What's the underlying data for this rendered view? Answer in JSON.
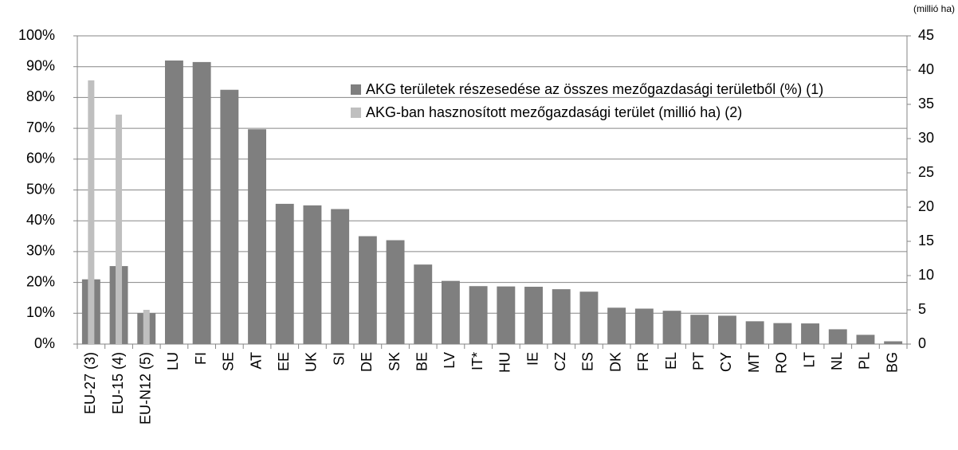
{
  "chart_data": {
    "type": "bar",
    "categories": [
      "EU-27 (3)",
      "EU-15 (4)",
      "EU-N12 (5)",
      "LU",
      "FI",
      "SE",
      "AT",
      "EE",
      "UK",
      "SI",
      "DE",
      "SK",
      "BE",
      "LV",
      "IT*",
      "HU",
      "IE",
      "CZ",
      "ES",
      "DK",
      "FR",
      "EL",
      "PT",
      "CY",
      "MT",
      "RO",
      "LT",
      "NL",
      "PL",
      "BG"
    ],
    "series": [
      {
        "name": "AKG területek részesedése az összes mezőgazdasági területből (%) (1)",
        "color": "#7f7f7f",
        "values": [
          21,
          25.3,
          10,
          92,
          91.5,
          82.5,
          69.7,
          45.5,
          45,
          43.8,
          35,
          33.7,
          25.8,
          20.5,
          18.8,
          18.7,
          18.6,
          17.8,
          17,
          11.8,
          11.5,
          10.8,
          9.5,
          9.2,
          7.4,
          6.8,
          6.7,
          4.8,
          3,
          0.9
        ]
      },
      {
        "name": "AKG-ban hasznosított mezőgazdasági terület (millió ha) (2)",
        "color": "#bfbfbf",
        "axis": "y2",
        "values": [
          38.5,
          33.5,
          5,
          null,
          null,
          null,
          null,
          null,
          null,
          null,
          null,
          null,
          null,
          null,
          null,
          null,
          null,
          null,
          null,
          null,
          null,
          null,
          null,
          null,
          null,
          null,
          null,
          null,
          null,
          null
        ]
      }
    ],
    "ylim": [
      0,
      100
    ],
    "yticks": [
      {
        "value": 0,
        "label": "0%"
      },
      {
        "value": 10,
        "label": "10%"
      },
      {
        "value": 20,
        "label": "20%"
      },
      {
        "value": 30,
        "label": "30%"
      },
      {
        "value": 40,
        "label": "40%"
      },
      {
        "value": 50,
        "label": "50%"
      },
      {
        "value": 60,
        "label": "60%"
      },
      {
        "value": 70,
        "label": "70%"
      },
      {
        "value": 80,
        "label": "80%"
      },
      {
        "value": 90,
        "label": "90%"
      },
      {
        "value": 100,
        "label": "100%"
      }
    ],
    "y2lim": [
      0,
      45
    ],
    "y2ticks": [
      0,
      5,
      10,
      15,
      20,
      25,
      30,
      35,
      40,
      45
    ],
    "y2label": "(millió ha)",
    "grid": true,
    "legend": "upper center"
  }
}
